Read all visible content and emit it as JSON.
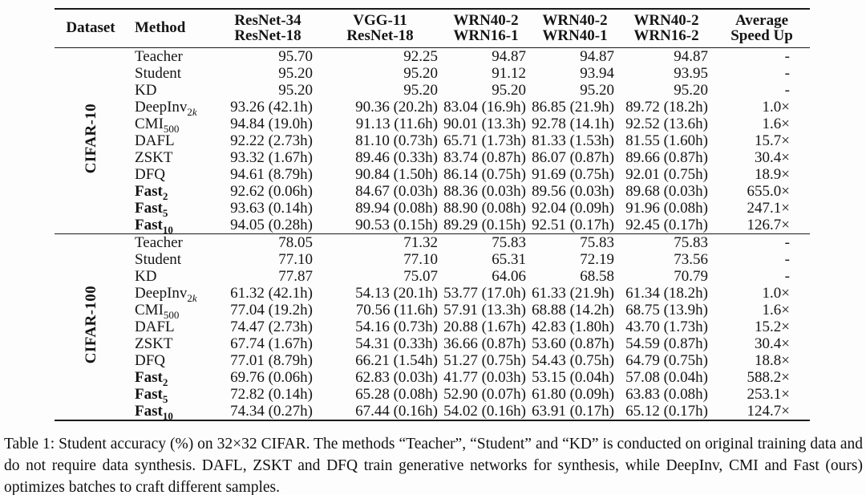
{
  "table": {
    "headers": {
      "dataset": "Dataset",
      "method": "Method",
      "pairs": [
        [
          "ResNet-34",
          "ResNet-18"
        ],
        [
          "VGG-11",
          "ResNet-18"
        ],
        [
          "WRN40-2",
          "WRN16-1"
        ],
        [
          "WRN40-2",
          "WRN40-1"
        ],
        [
          "WRN40-2",
          "WRN16-2"
        ],
        [
          "Average",
          "Speed Up"
        ]
      ]
    },
    "sections": [
      {
        "dataset": "CIFAR-10",
        "rows": [
          {
            "method": "Teacher",
            "sub": "",
            "bold": false,
            "values": [
              "95.70",
              "92.25",
              "94.87",
              "94.87",
              "94.87",
              "-"
            ]
          },
          {
            "method": "Student",
            "sub": "",
            "bold": false,
            "values": [
              "95.20",
              "95.20",
              "91.12",
              "93.94",
              "93.95",
              "-"
            ]
          },
          {
            "method": "KD",
            "sub": "",
            "bold": false,
            "values": [
              "95.20",
              "95.20",
              "95.20",
              "95.20",
              "95.20",
              "-"
            ]
          },
          {
            "method": "DeepInv",
            "sub": "2k",
            "bold": false,
            "values": [
              "93.26 (42.1h)",
              "90.36 (20.2h)",
              "83.04 (16.9h)",
              "86.85 (21.9h)",
              "89.72 (18.2h)",
              "1.0×"
            ]
          },
          {
            "method": "CMI",
            "sub": "500",
            "bold": false,
            "values": [
              "94.84 (19.0h)",
              "91.13 (11.6h)",
              "90.01 (13.3h)",
              "92.78 (14.1h)",
              "92.52 (13.6h)",
              "1.6×"
            ]
          },
          {
            "method": "DAFL",
            "sub": "",
            "bold": false,
            "values": [
              "92.22 (2.73h)",
              "81.10 (0.73h)",
              "65.71 (1.73h)",
              "81.33 (1.53h)",
              "81.55 (1.60h)",
              "15.7×"
            ]
          },
          {
            "method": "ZSKT",
            "sub": "",
            "bold": false,
            "values": [
              "93.32 (1.67h)",
              "89.46 (0.33h)",
              "83.74 (0.87h)",
              "86.07 (0.87h)",
              "89.66 (0.87h)",
              "30.4×"
            ]
          },
          {
            "method": "DFQ",
            "sub": "",
            "bold": false,
            "values": [
              "94.61 (8.79h)",
              "90.84 (1.50h)",
              "86.14 (0.75h)",
              "91.69 (0.75h)",
              "92.01 (0.75h)",
              "18.9×"
            ]
          },
          {
            "method": "Fast",
            "sub": "2",
            "bold": true,
            "values": [
              "92.62 (0.06h)",
              "84.67 (0.03h)",
              "88.36 (0.03h)",
              "89.56 (0.03h)",
              "89.68 (0.03h)",
              "655.0×"
            ]
          },
          {
            "method": "Fast",
            "sub": "5",
            "bold": true,
            "values": [
              "93.63 (0.14h)",
              "89.94 (0.08h)",
              "88.90 (0.08h)",
              "92.04 (0.09h)",
              "91.96 (0.08h)",
              "247.1×"
            ]
          },
          {
            "method": "Fast",
            "sub": "10",
            "bold": true,
            "values": [
              "94.05 (0.28h)",
              "90.53 (0.15h)",
              "89.29 (0.15h)",
              "92.51 (0.17h)",
              "92.45 (0.17h)",
              "126.7×"
            ]
          }
        ]
      },
      {
        "dataset": "CIFAR-100",
        "rows": [
          {
            "method": "Teacher",
            "sub": "",
            "bold": false,
            "values": [
              "78.05",
              "71.32",
              "75.83",
              "75.83",
              "75.83",
              "-"
            ]
          },
          {
            "method": "Student",
            "sub": "",
            "bold": false,
            "values": [
              "77.10",
              "77.10",
              "65.31",
              "72.19",
              "73.56",
              "-"
            ]
          },
          {
            "method": "KD",
            "sub": "",
            "bold": false,
            "values": [
              "77.87",
              "75.07",
              "64.06",
              "68.58",
              "70.79",
              "-"
            ]
          },
          {
            "method": "DeepInv",
            "sub": "2k",
            "bold": false,
            "values": [
              "61.32 (42.1h)",
              "54.13 (20.1h)",
              "53.77 (17.0h)",
              "61.33 (21.9h)",
              "61.34 (18.2h)",
              "1.0×"
            ]
          },
          {
            "method": "CMI",
            "sub": "500",
            "bold": false,
            "values": [
              "77.04 (19.2h)",
              "70.56 (11.6h)",
              "57.91 (13.3h)",
              "68.88 (14.2h)",
              "68.75 (13.9h)",
              "1.6×"
            ]
          },
          {
            "method": "DAFL",
            "sub": "",
            "bold": false,
            "values": [
              "74.47 (2.73h)",
              "54.16 (0.73h)",
              "20.88 (1.67h)",
              "42.83 (1.80h)",
              "43.70 (1.73h)",
              "15.2×"
            ]
          },
          {
            "method": "ZSKT",
            "sub": "",
            "bold": false,
            "values": [
              "67.74 (1.67h)",
              "54.31 (0.33h)",
              "36.66 (0.87h)",
              "53.60 (0.87h)",
              "54.59 (0.87h)",
              "30.4×"
            ]
          },
          {
            "method": "DFQ",
            "sub": "",
            "bold": false,
            "values": [
              "77.01 (8.79h)",
              "66.21 (1.54h)",
              "51.27 (0.75h)",
              "54.43 (0.75h)",
              "64.79 (0.75h)",
              "18.8×"
            ]
          },
          {
            "method": "Fast",
            "sub": "2",
            "bold": true,
            "values": [
              "69.76 (0.06h)",
              "62.83 (0.03h)",
              "41.77 (0.03h)",
              "53.15 (0.04h)",
              "57.08 (0.04h)",
              "588.2×"
            ]
          },
          {
            "method": "Fast",
            "sub": "5",
            "bold": true,
            "values": [
              "72.82 (0.14h)",
              "65.28 (0.08h)",
              "52.90 (0.07h)",
              "61.80 (0.09h)",
              "63.83 (0.08h)",
              "253.1×"
            ]
          },
          {
            "method": "Fast",
            "sub": "10",
            "bold": true,
            "values": [
              "74.34 (0.27h)",
              "67.44 (0.16h)",
              "54.02 (0.16h)",
              "63.91 (0.17h)",
              "65.12 (0.17h)",
              "124.7×"
            ]
          }
        ]
      }
    ]
  },
  "caption": "Table 1: Student accuracy (%) on 32×32 CIFAR. The methods “Teacher”, “Student” and “KD” is conducted on original training data and do not require data synthesis. DAFL, ZSKT and DFQ train generative networks for synthesis, while DeepInv, CMI and Fast (ours) optimizes batches to craft different samples.",
  "colors": {
    "text": "#151515",
    "rule": "#1a1a1a",
    "background": "#fdfdfd"
  }
}
